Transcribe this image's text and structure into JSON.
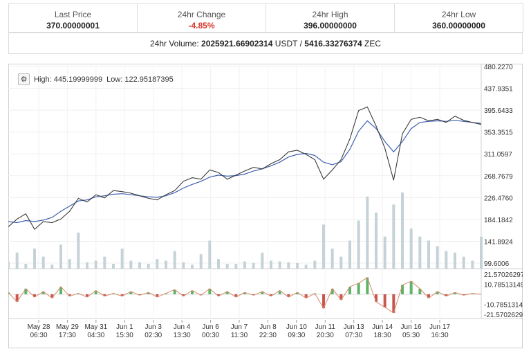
{
  "stats": [
    {
      "label": "Last Price",
      "value": "370.00000001"
    },
    {
      "label": "24hr Change",
      "value": "-4.85%"
    },
    {
      "label": "24hr High",
      "value": "396.00000000"
    },
    {
      "label": "24hr Low",
      "value": "360.00000000"
    }
  ],
  "volume": {
    "prefix": "24hr Volume: ",
    "usdt": "2025921.66902314",
    "usdt_unit": " USDT / ",
    "zec": "5416.33276374",
    "zec_unit": " ZEC"
  },
  "chart_info": {
    "high_label": "High: 445.19999999",
    "low_label": "Low: 122.95187395",
    "settings_icon": "gear-icon"
  },
  "chart_data": {
    "type": "line",
    "price_axis_labels": [
      "480.2270",
      "437.9351",
      "395.6433",
      "353.3515",
      "311.0597",
      "268.7679",
      "226.4760",
      "184.1842",
      "141.8924",
      "99.6006"
    ],
    "ylim": [
      99.6006,
      480.227
    ],
    "indicator_axis_labels": [
      "21.57026297",
      "10.78513149",
      "-10.78513149",
      "-21.57026297"
    ],
    "indicator_ylim": [
      -21.57026297,
      21.57026297
    ],
    "x_labels": [
      {
        "date": "May 28",
        "time": "06:30"
      },
      {
        "date": "May 29",
        "time": "17:30"
      },
      {
        "date": "May 31",
        "time": "04:30"
      },
      {
        "date": "Jun 1",
        "time": "15:30"
      },
      {
        "date": "Jun 3",
        "time": "02:30"
      },
      {
        "date": "Jun 4",
        "time": "13:30"
      },
      {
        "date": "Jun 6",
        "time": "00:30"
      },
      {
        "date": "Jun 7",
        "time": "11:30"
      },
      {
        "date": "Jun 8",
        "time": "22:30"
      },
      {
        "date": "Jun 10",
        "time": "09:30"
      },
      {
        "date": "Jun 11",
        "time": "20:30"
      },
      {
        "date": "Jun 13",
        "time": "07:30"
      },
      {
        "date": "Jun 14",
        "time": "18:30"
      },
      {
        "date": "Jun 16",
        "time": "05:30"
      },
      {
        "date": "Jun 17",
        "time": "16:30"
      }
    ],
    "price_series": [
      170,
      185,
      195,
      165,
      180,
      178,
      185,
      200,
      225,
      218,
      232,
      226,
      240,
      238,
      235,
      230,
      225,
      222,
      232,
      240,
      258,
      265,
      262,
      280,
      275,
      262,
      270,
      278,
      285,
      282,
      292,
      300,
      315,
      318,
      310,
      300,
      262,
      280,
      300,
      340,
      395,
      402,
      365,
      322,
      260,
      350,
      378,
      382,
      375,
      378,
      372,
      384,
      376,
      372,
      368
    ],
    "ma_series": [
      180,
      178,
      182,
      180,
      183,
      188,
      200,
      210,
      220,
      222,
      228,
      230,
      233,
      234,
      232,
      230,
      228,
      227,
      230,
      236,
      245,
      252,
      258,
      266,
      270,
      268,
      269,
      272,
      278,
      282,
      288,
      295,
      305,
      310,
      312,
      308,
      295,
      290,
      296,
      320,
      355,
      375,
      360,
      335,
      315,
      335,
      360,
      372,
      374,
      375,
      374,
      376,
      374,
      372,
      370
    ],
    "volume_series": [
      8,
      20,
      6,
      25,
      15,
      5,
      30,
      12,
      45,
      8,
      10,
      15,
      6,
      25,
      10,
      8,
      6,
      12,
      10,
      22,
      8,
      5,
      18,
      35,
      12,
      6,
      6,
      9,
      7,
      20,
      10,
      9,
      8,
      7,
      5,
      10,
      55,
      25,
      15,
      35,
      60,
      90,
      70,
      40,
      80,
      95,
      50,
      40,
      35,
      28,
      22,
      20,
      15,
      10,
      40
    ],
    "indicator_series": [
      2,
      -8,
      6,
      -3,
      3,
      -4,
      8,
      -2,
      1,
      -3,
      4,
      -2,
      1,
      -2,
      3,
      -1,
      2,
      -3,
      1,
      5,
      -2,
      4,
      -1,
      6,
      -2,
      3,
      -3,
      2,
      -1,
      3,
      -2,
      4,
      -3,
      2,
      -4,
      1,
      -15,
      6,
      -6,
      8,
      12,
      18,
      -8,
      -14,
      -20,
      10,
      14,
      6,
      -4,
      3,
      -2,
      2,
      -1,
      1,
      0
    ]
  }
}
